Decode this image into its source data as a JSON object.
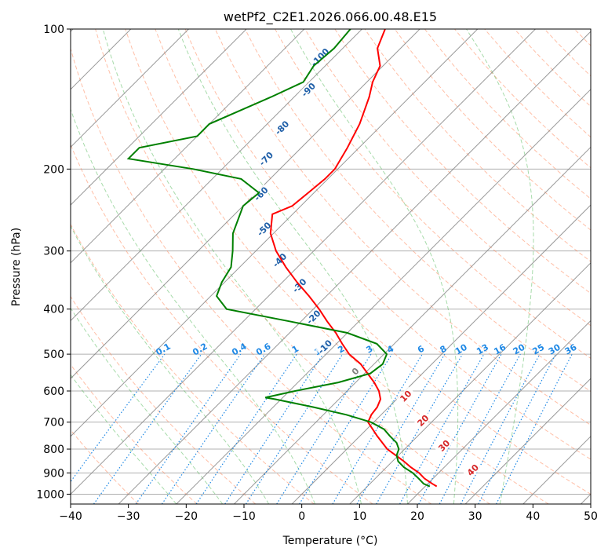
{
  "chart_data": {
    "type": "line",
    "title": "wetPf2_C2E1.2026.066.00.48.E15",
    "xlabel": "Temperature (°C)",
    "ylabel": "Pressure (hPa)",
    "xlim": [
      -40,
      50
    ],
    "ylim": [
      1050,
      100
    ],
    "y_scale": "log",
    "grid": true,
    "x_ticks": [
      -40,
      -30,
      -20,
      -10,
      0,
      10,
      20,
      30,
      40,
      50
    ],
    "y_ticks": [
      100,
      200,
      300,
      400,
      500,
      600,
      700,
      800,
      900,
      1000
    ],
    "skew_reference_pressure": 1000,
    "colors": {
      "temperature": "#ff0000",
      "dewpoint": "#008000",
      "isotherm": "#808080",
      "dry_adiabat": "#ff7f50",
      "moist_adiabat": "#3cb043",
      "mixing_ratio": "#1e88e5",
      "wet_bulb_label": "#1f5fa8",
      "hot_label": "#d62728"
    },
    "series": [
      {
        "name": "Temperature",
        "pressure": [
          962,
          950,
          925,
          900,
          875,
          850,
          800,
          750,
          700,
          675,
          650,
          625,
          600,
          575,
          550,
          525,
          500,
          475,
          450,
          425,
          400,
          375,
          350,
          325,
          300,
          275,
          250,
          240,
          225,
          210,
          200,
          180,
          160,
          140,
          130,
          120,
          110,
          100
        ],
        "temp": [
          22.0,
          20.8,
          18.5,
          16.6,
          14.2,
          12.0,
          7.0,
          3.0,
          -1.0,
          -1.7,
          -2.0,
          -2.8,
          -4.5,
          -6.8,
          -9.5,
          -12.3,
          -16.0,
          -19.0,
          -22.0,
          -25.5,
          -29.0,
          -33.0,
          -37.5,
          -42.0,
          -46.5,
          -50.5,
          -53.5,
          -51.5,
          -51.0,
          -50.5,
          -50.5,
          -52.0,
          -54.0,
          -57.0,
          -59.0,
          -60.5,
          -64.0,
          -66.0
        ]
      },
      {
        "name": "Dewpoint",
        "pressure": [
          962,
          950,
          925,
          900,
          875,
          850,
          825,
          800,
          775,
          750,
          725,
          700,
          675,
          650,
          625,
          620,
          600,
          575,
          550,
          525,
          500,
          475,
          450,
          425,
          400,
          375,
          350,
          325,
          300,
          275,
          240,
          225,
          210,
          200,
          190,
          180,
          170,
          160,
          140,
          130,
          120,
          110,
          100
        ],
        "dewp": [
          20.8,
          19.3,
          17.5,
          15.5,
          13.0,
          11.0,
          9.7,
          9.0,
          7.5,
          5.2,
          3.0,
          -0.5,
          -6.0,
          -13.0,
          -21.0,
          -23.0,
          -19.0,
          -13.0,
          -9.0,
          -8.5,
          -9.5,
          -13.0,
          -20.0,
          -32.0,
          -45.0,
          -49.0,
          -50.5,
          -51.5,
          -54.0,
          -57.0,
          -60.0,
          -59.5,
          -65.0,
          -75.0,
          -88.0,
          -88.0,
          -80.0,
          -80.0,
          -74.0,
          -71.0,
          -72.0,
          -71.5,
          -72.0
        ]
      }
    ],
    "isotherm_temps": [
      -150,
      -140,
      -130,
      -120,
      -110,
      -100,
      -90,
      -80,
      -70,
      -60,
      -50,
      -40,
      -30,
      -20,
      -10,
      0,
      10,
      20,
      30,
      40,
      50
    ],
    "dry_adiabat_thetas_c": [
      -30,
      -20,
      -10,
      0,
      10,
      20,
      30,
      40,
      50,
      60,
      70,
      80,
      90,
      100,
      110,
      120,
      130,
      140,
      150,
      160,
      170,
      180,
      190,
      200,
      220
    ],
    "moist_adiabat_start_temps_c": [
      -20,
      -12,
      -4,
      4,
      12,
      20,
      28,
      36
    ],
    "mixing_ratio_values": [
      "0.1",
      "0.2",
      "0.4",
      "0.6",
      "1",
      "1.5",
      "2",
      "3",
      "4",
      "6",
      "8",
      "10",
      "13",
      "16",
      "20",
      "25",
      "30",
      "36"
    ],
    "mixing_ratio_label_pressure": 500,
    "wet_bulb_labels": [
      {
        "text": "-100",
        "t": -72.4,
        "p": 115
      },
      {
        "text": "-90",
        "t": -68.8,
        "p": 135
      },
      {
        "text": "-80",
        "t": -66.8,
        "p": 163
      },
      {
        "text": "-70",
        "t": -64.2,
        "p": 190
      },
      {
        "text": "-60",
        "t": -59.0,
        "p": 226
      },
      {
        "text": "-50",
        "t": -52.4,
        "p": 269
      },
      {
        "text": "-40",
        "t": -44.3,
        "p": 314
      },
      {
        "text": "-30",
        "t": -36.5,
        "p": 356
      },
      {
        "text": "-20",
        "t": -28.6,
        "p": 416
      },
      {
        "text": "-10",
        "t": -21.5,
        "p": 482
      }
    ],
    "zero_label": {
      "text": "0",
      "t": -12.0,
      "p": 544
    },
    "hot_labels": [
      {
        "text": "10",
        "t": 1.0,
        "p": 615
      },
      {
        "text": "20",
        "t": 8.2,
        "p": 694
      },
      {
        "text": "30",
        "t": 16.2,
        "p": 786
      },
      {
        "text": "40",
        "t": 25.4,
        "p": 887
      }
    ]
  }
}
